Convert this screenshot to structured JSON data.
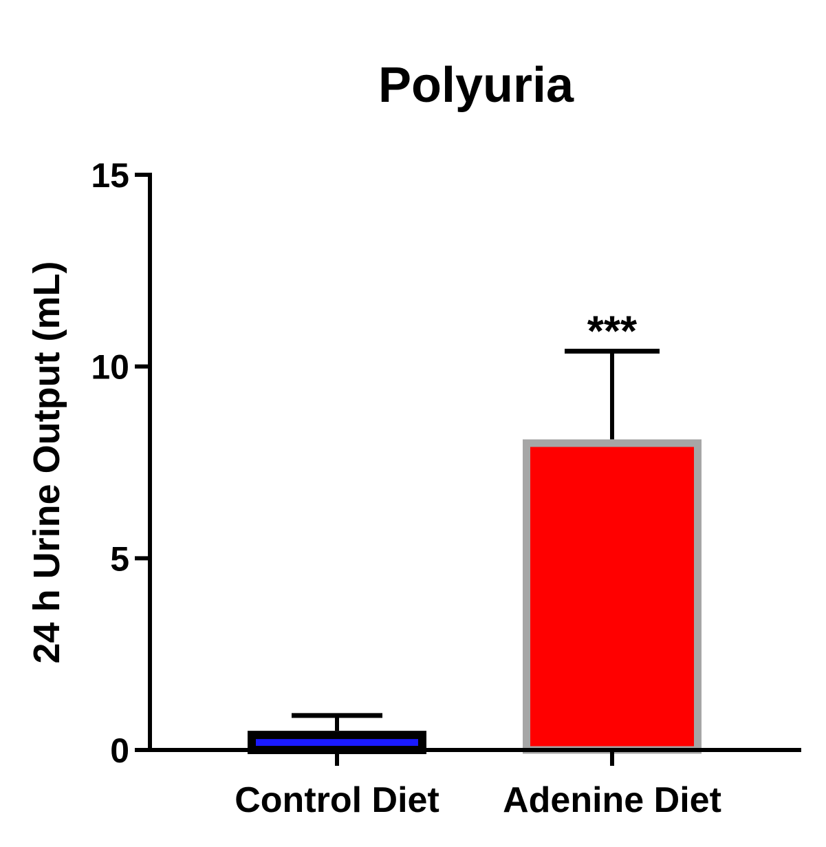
{
  "chart_data": {
    "type": "bar",
    "title": "Polyuria",
    "xlabel": "",
    "ylabel": "24 h Urine Output (mL)",
    "ylim": [
      0,
      15
    ],
    "yticks": [
      0,
      5,
      10,
      15
    ],
    "grid": false,
    "categories": [
      "Control Diet",
      "Adenine Diet"
    ],
    "values": [
      0.5,
      8.1
    ],
    "errors": [
      0.4,
      2.3
    ],
    "annotations": [
      "",
      "***"
    ],
    "colors": {
      "fill": [
        "#1a1aff",
        "#ff0000"
      ],
      "outline": [
        "#000000",
        "#a6a6a6"
      ],
      "axis": "#000000"
    }
  }
}
